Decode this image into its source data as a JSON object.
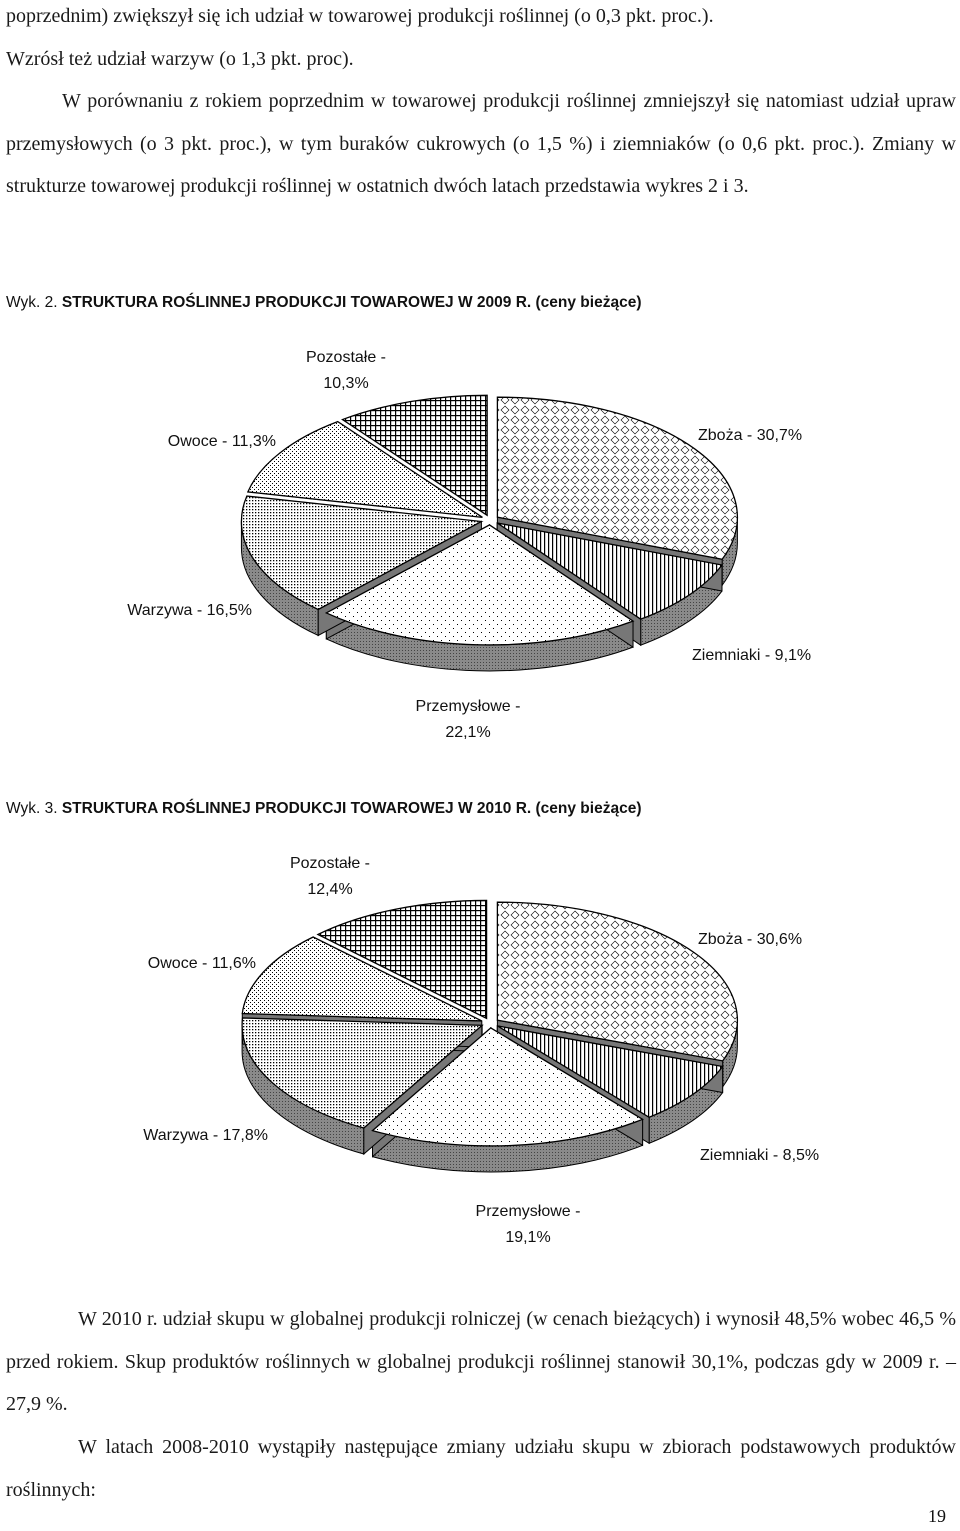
{
  "text_top": [
    "poprzednim) zwiększył się ich udział w towarowej produkcji roślinnej (o 0,3 pkt. proc.).",
    "Wzrósł też udział warzyw (o 1,3 pkt. proc).",
    "W porównaniu z rokiem poprzednim w towarowej produkcji roślinnej zmniejszył się natomiast udział upraw przemysłowych (o 3 pkt. proc.), w tym buraków cukrowych (o 1,5 %) i ziemniaków (o 0,6 pkt. proc.). Zmiany w strukturze towarowej produkcji roślinnej w ostatnich dwóch latach przedstawia wykres 2 i 3."
  ],
  "figures": [
    {
      "prefix": "Wyk. 2. ",
      "title": "STRUKTURA ROŚLINNEJ PRODUKCJI TOWAROWEJ W 2009 R. (ceny bieżące)"
    },
    {
      "prefix": "Wyk. 3. ",
      "title": "STRUKTURA ROŚLINNEJ PRODUKCJI TOWAROWEJ W 2010 R. (ceny bieżące)"
    }
  ],
  "chart_data": [
    {
      "type": "pie",
      "title": "STRUKTURA ROŚLINNEJ PRODUKCJI TOWAROWEJ W 2009 R. (ceny bieżące)",
      "slices": [
        {
          "name": "Zboża",
          "value": 30.7,
          "label": [
            "Zboża - 30,7%"
          ],
          "pattern": "diamond"
        },
        {
          "name": "Ziemniaki",
          "value": 9.1,
          "label": [
            "Ziemniaki - 9,1%"
          ],
          "pattern": "vstripe"
        },
        {
          "name": "Przemysłowe",
          "value": 22.1,
          "label": [
            "Przemysłowe -",
            "22,1%"
          ],
          "pattern": "sparse-dots"
        },
        {
          "name": "Warzywa",
          "value": 16.5,
          "label": [
            "Warzywa - 16,5%"
          ],
          "pattern": "dense-dots"
        },
        {
          "name": "Owoce",
          "value": 11.3,
          "label": [
            "Owoce - 11,3%"
          ],
          "pattern": "medium-dots"
        },
        {
          "name": "Pozostałe",
          "value": 10.3,
          "label": [
            "Pozostałe -",
            "10,3%"
          ],
          "pattern": "grid"
        }
      ],
      "style": "3D pie, exploded slices, black & white hatched patterns"
    },
    {
      "type": "pie",
      "title": "STRUKTURA ROŚLINNEJ PRODUKCJI TOWAROWEJ W 2010 R. (ceny bieżące)",
      "slices": [
        {
          "name": "Zboża",
          "value": 30.6,
          "label": [
            "Zboża - 30,6%"
          ],
          "pattern": "diamond"
        },
        {
          "name": "Ziemniaki",
          "value": 8.5,
          "label": [
            "Ziemniaki - 8,5%"
          ],
          "pattern": "vstripe"
        },
        {
          "name": "Przemysłowe",
          "value": 19.1,
          "label": [
            "Przemysłowe -",
            "19,1%"
          ],
          "pattern": "sparse-dots"
        },
        {
          "name": "Warzywa",
          "value": 17.8,
          "label": [
            "Warzywa - 17,8%"
          ],
          "pattern": "dense-dots"
        },
        {
          "name": "Owoce",
          "value": 11.6,
          "label": [
            "Owoce - 11,6%"
          ],
          "pattern": "medium-dots"
        },
        {
          "name": "Pozostałe",
          "value": 12.4,
          "label": [
            "Pozostałe -",
            "12,4%"
          ],
          "pattern": "grid"
        }
      ],
      "style": "3D pie, exploded slices, black & white hatched patterns"
    }
  ],
  "text_bottom": [
    "W 2010 r. udział skupu w globalnej produkcji rolniczej (w cenach bieżących) i wynosił 48,5% wobec 46,5 % przed rokiem. Skup produktów roślinnych w globalnej produkcji roślinnej stanowił 30,1%, podczas gdy w 2009 r. – 27,9 %.",
    "W latach 2008-2010 wystąpiły następujące zmiany udziału skupu w zbiorach podstawowych produktów roślinnych:"
  ],
  "page_number": "19",
  "colors": {
    "text": "#1a1a1a",
    "side_fill": "#888888",
    "outline": "#000000"
  }
}
